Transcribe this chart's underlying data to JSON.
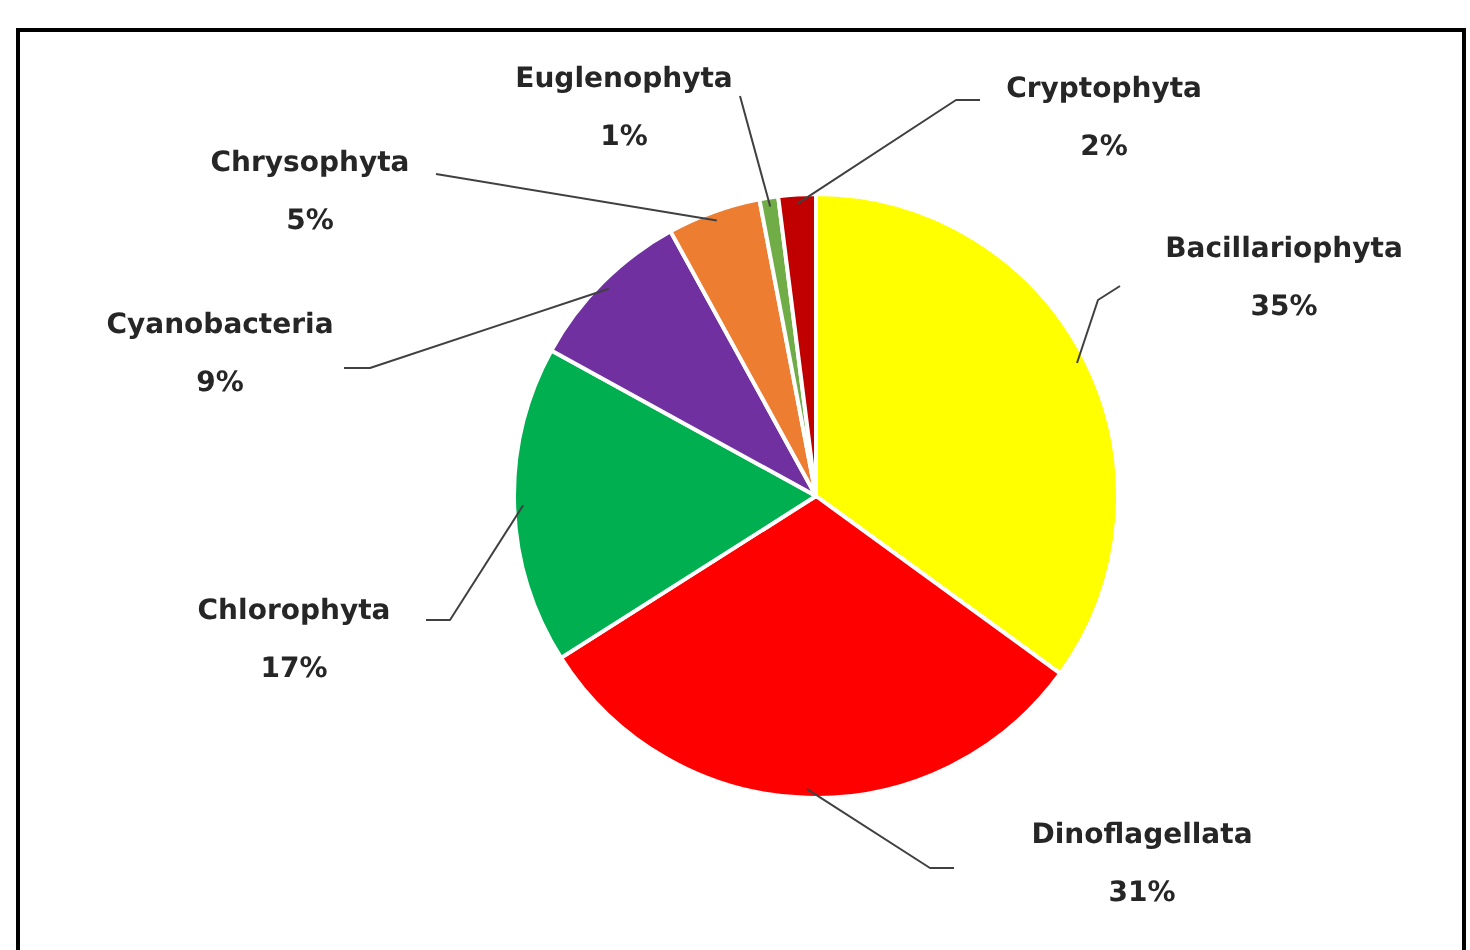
{
  "chart_data": {
    "type": "pie",
    "categories": [
      "Bacillariophyta",
      "Dinoflagellata",
      "Chlorophyta",
      "Cyanobacteria",
      "Chrysophyta",
      "Euglenophyta",
      "Cryptophyta"
    ],
    "values": [
      35,
      31,
      17,
      9,
      5,
      1,
      2
    ],
    "colors": [
      "#ffff00",
      "#ff0000",
      "#00b050",
      "#7030a0",
      "#ed7d31",
      "#70ad47",
      "#c00000"
    ],
    "value_labels": [
      "35%",
      "31%",
      "17%",
      "9%",
      "5%",
      "1%",
      "2%"
    ],
    "legend": false
  }
}
